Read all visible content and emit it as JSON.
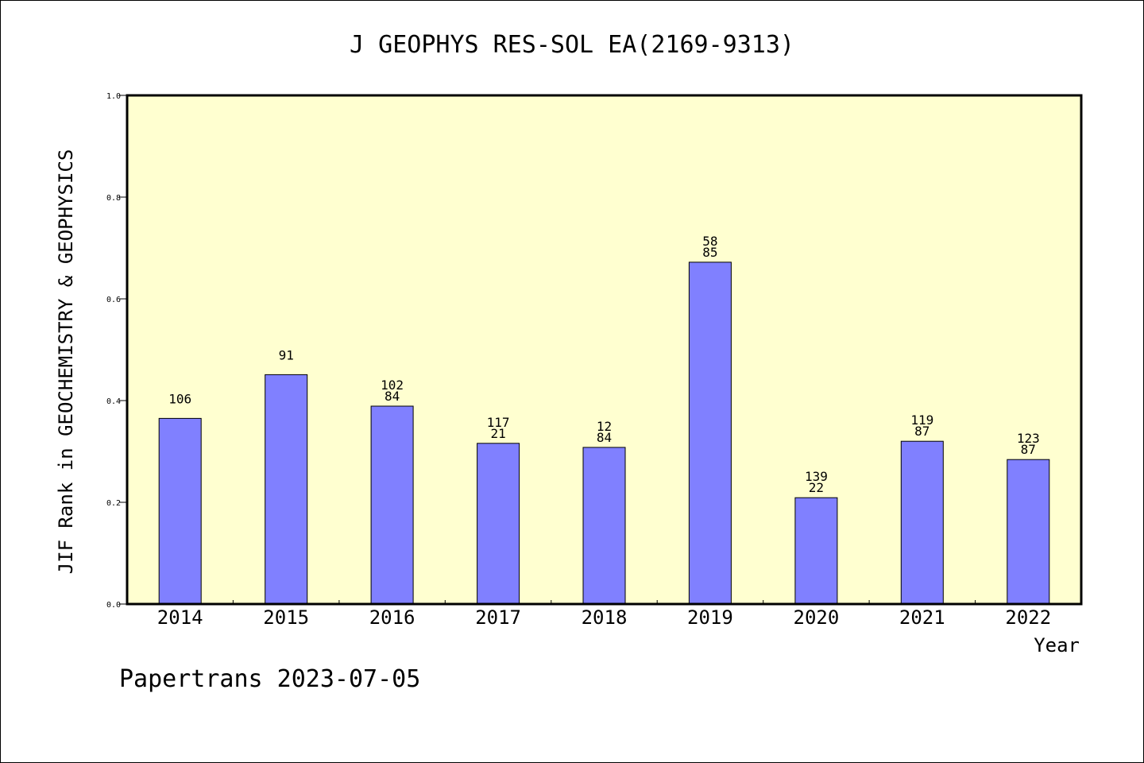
{
  "chart_data": {
    "type": "bar",
    "title": "J GEOPHYS RES-SOL EA(2169-9313)",
    "xlabel": "Year",
    "ylabel": "JIF Rank in GEOCHEMISTRY & GEOPHYSICS",
    "ylim": [
      0,
      1.0
    ],
    "yticks": [
      "0.0",
      "0.2",
      "0.4",
      "0.6",
      "0.8",
      "1.0"
    ],
    "categories": [
      "2014",
      "2015",
      "2016",
      "2017",
      "2018",
      "2019",
      "2020",
      "2021",
      "2022"
    ],
    "values": [
      0.365,
      0.451,
      0.389,
      0.316,
      0.308,
      0.672,
      0.209,
      0.32,
      0.284
    ],
    "bar_labels": [
      [
        "106"
      ],
      [
        "91"
      ],
      [
        "102",
        "84"
      ],
      [
        "117",
        "21"
      ],
      [
        "12",
        "84"
      ],
      [
        "58",
        "85"
      ],
      [
        "139",
        "22"
      ],
      [
        "119",
        "87"
      ],
      [
        "123",
        "87"
      ]
    ],
    "grid": false,
    "bar_color": "#8080ff",
    "plot_background": "#ffffd0"
  },
  "footer": "Papertrans 2023-07-05"
}
